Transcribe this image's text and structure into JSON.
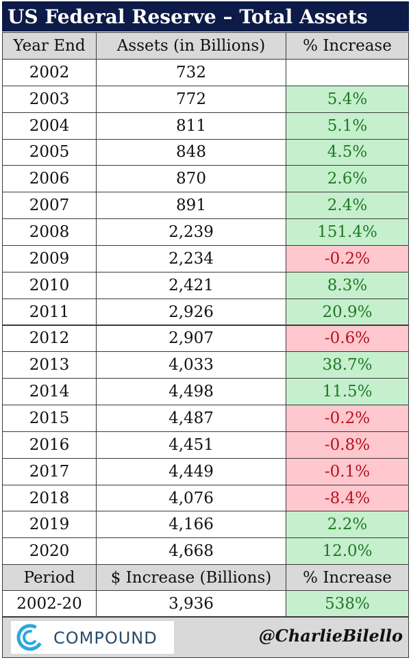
{
  "title": "US Federal Reserve – Total Assets",
  "table": {
    "header": [
      "Year End",
      "Assets (in Billions)",
      "% Increase"
    ],
    "rows": [
      [
        "2002",
        "732",
        null
      ],
      [
        "2003",
        "772",
        "5.4%"
      ],
      [
        "2004",
        "811",
        "5.1%"
      ],
      [
        "2005",
        "848",
        "4.5%"
      ],
      [
        "2006",
        "870",
        "2.6%"
      ],
      [
        "2007",
        "891",
        "2.4%"
      ],
      [
        "2008",
        "2,239",
        "151.4%"
      ],
      [
        "2009",
        "2,234",
        "-0.2%"
      ],
      [
        "2010",
        "2,421",
        "8.3%"
      ],
      [
        "2011",
        "2,926",
        "20.9%"
      ],
      [
        "2012",
        "2,907",
        "-0.6%"
      ],
      [
        "2013",
        "4,033",
        "38.7%"
      ],
      [
        "2014",
        "4,498",
        "11.5%"
      ],
      [
        "2015",
        "4,487",
        "-0.2%"
      ],
      [
        "2016",
        "4,451",
        "-0.8%"
      ],
      [
        "2017",
        "4,449",
        "-0.1%"
      ],
      [
        "2018",
        "4,076",
        "-8.4%"
      ],
      [
        "2019",
        "4,166",
        "2.2%"
      ],
      [
        "2020",
        "4,668",
        "12.0%"
      ]
    ]
  },
  "summary": {
    "header": [
      "Period",
      "$ Increase (Billions)",
      "% Increase"
    ],
    "row": [
      "2002-20",
      "3,936",
      "538%"
    ]
  },
  "footer": {
    "brand": "COMPOUND",
    "handle": "@CharlieBilello"
  }
}
